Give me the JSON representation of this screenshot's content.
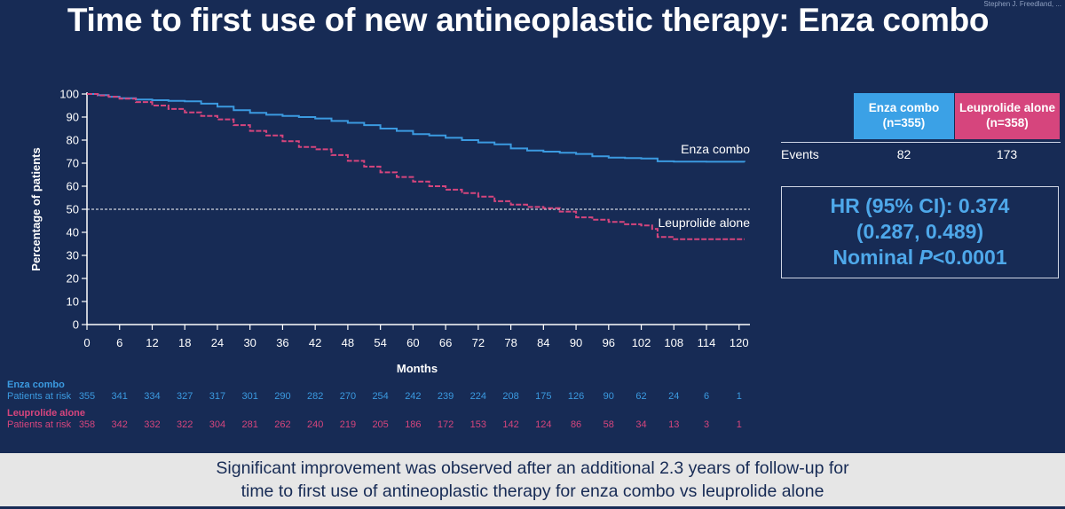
{
  "title": "Time to first use of new antineoplastic therapy: Enza combo",
  "corner_text": "Stephen J. Freedland, ...",
  "chart_data": {
    "type": "line",
    "xlabel": "Months",
    "ylabel": "Percentage of patients",
    "xlim": [
      0,
      122
    ],
    "ylim": [
      0,
      100
    ],
    "x_ticks": [
      0,
      6,
      12,
      18,
      24,
      30,
      36,
      42,
      48,
      54,
      60,
      66,
      72,
      78,
      84,
      90,
      96,
      102,
      108,
      114,
      120
    ],
    "y_ticks": [
      0,
      10,
      20,
      30,
      40,
      50,
      60,
      70,
      80,
      90,
      100
    ],
    "reference_line": 50,
    "series": [
      {
        "name": "Enza combo",
        "color": "#3b9ae0",
        "style": "solid",
        "x": [
          0,
          2,
          4,
          6,
          9,
          12,
          15,
          18,
          21,
          24,
          27,
          30,
          33,
          36,
          39,
          42,
          45,
          48,
          51,
          54,
          57,
          60,
          63,
          66,
          69,
          72,
          75,
          78,
          81,
          84,
          87,
          90,
          93,
          96,
          99,
          102,
          105,
          108,
          114,
          121
        ],
        "values": [
          100,
          99.5,
          98.8,
          98.2,
          97.6,
          97.3,
          97.0,
          96.8,
          95.8,
          94.5,
          93.0,
          91.8,
          91.0,
          90.5,
          90.0,
          89.4,
          88.3,
          87.5,
          86.5,
          85.0,
          84.0,
          82.6,
          82.0,
          81.0,
          80.0,
          79.0,
          78.2,
          76.4,
          75.5,
          75.0,
          74.5,
          74.0,
          73.0,
          72.4,
          72.2,
          72.0,
          70.8,
          70.7,
          70.6,
          70.5
        ]
      },
      {
        "name": "Leuprolide alone",
        "color": "#d6457d",
        "style": "dashed",
        "x": [
          0,
          2,
          4,
          6,
          9,
          12,
          15,
          18,
          21,
          24,
          27,
          30,
          33,
          36,
          39,
          42,
          45,
          48,
          51,
          54,
          57,
          60,
          63,
          66,
          69,
          72,
          75,
          78,
          81,
          84,
          87,
          90,
          93,
          96,
          99,
          102,
          104,
          105,
          108,
          114,
          121
        ],
        "values": [
          100,
          99.4,
          98.8,
          98.0,
          96.5,
          95.0,
          93.5,
          92.0,
          90.5,
          89.0,
          86.5,
          84.0,
          82.0,
          79.5,
          77.0,
          76.0,
          73.5,
          71.0,
          68.5,
          66.0,
          64.0,
          62.0,
          60.0,
          58.5,
          57.0,
          55.5,
          53.5,
          52.0,
          51.0,
          50.5,
          49.0,
          46.5,
          45.5,
          44.5,
          43.5,
          43.0,
          41.5,
          38.0,
          37.0,
          37.0,
          37.0
        ]
      }
    ]
  },
  "curve_labels": {
    "enza": "Enza combo",
    "leuprolide": "Leuprolide alone"
  },
  "stats_table": {
    "columns": [
      {
        "label_line1": "Enza combo",
        "label_line2": "(n=355)",
        "color": "#3ba1e6"
      },
      {
        "label_line1": "Leuprolide alone",
        "label_line2": "(n=358)",
        "color": "#d6457d"
      }
    ],
    "row_label": "Events",
    "values": [
      "82",
      "173"
    ]
  },
  "hr_box": {
    "line1": "HR (95% CI): 0.374",
    "line2": "(0.287, 0.489)",
    "line3_prefix": "Nominal ",
    "line3_italic": "P",
    "line3_suffix": "<0.0001"
  },
  "risk_table": {
    "enza": {
      "group": "Enza combo",
      "label": "Patients at risk",
      "values": [
        "355",
        "341",
        "334",
        "327",
        "317",
        "301",
        "290",
        "282",
        "270",
        "254",
        "242",
        "239",
        "224",
        "208",
        "175",
        "126",
        "90",
        "62",
        "24",
        "6",
        "1"
      ]
    },
    "leuprolide": {
      "group": "Leuprolide alone",
      "label": "Patients at risk",
      "values": [
        "358",
        "342",
        "332",
        "322",
        "304",
        "281",
        "262",
        "240",
        "219",
        "205",
        "186",
        "172",
        "153",
        "142",
        "124",
        "86",
        "58",
        "34",
        "13",
        "3",
        "1"
      ]
    }
  },
  "footer": {
    "line1": "Significant improvement was observed after an additional 2.3 years of follow-up for",
    "line2": "time to first use of antineoplastic therapy for enza combo vs leuprolide alone"
  }
}
